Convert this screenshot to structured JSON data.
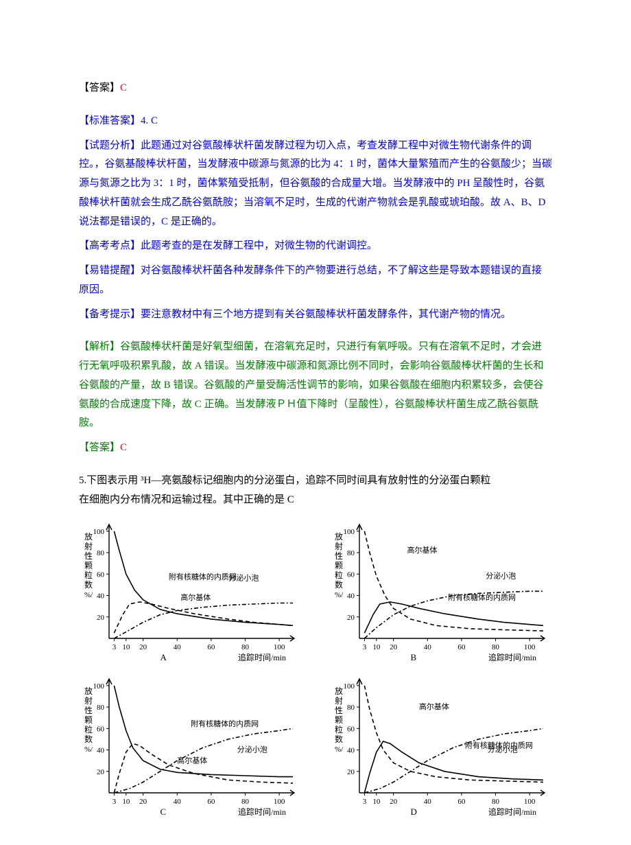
{
  "answer1": {
    "label": "【答案】",
    "value": "C"
  },
  "standard": {
    "label": "【标准答案】",
    "value": "4. C"
  },
  "analysis_q": {
    "label": "【试题分析】",
    "text": "此题通过对谷氨酸棒状杆菌发酵过程为切入点，考查发酵工程中对微生物代谢条件的调控。，谷氨基酸棒状杆菌，当发酵液中碳源与氮源的比为 4：1 时，菌体大量繁殖而产生的谷氨酸少；当碳源与氮源之比为 3：1 时，菌体繁殖受抵制，但谷氨酸的合成量大增。当发酵液中的 PH 呈酸性时，谷氨酸棒状杆菌就会生成乙酰谷氨酰胺；当溶氧不足时，生成的代谢产物就会是乳酸或琥珀酸。故 A、B、D 说法都是错误的，C 是正确的。"
  },
  "gkpoint": {
    "label": "【高考考点】",
    "text": "此题考查的是在发酵工程中，对微生物的代谢调控。"
  },
  "mistake": {
    "label": "【易错提醒】",
    "text": "对谷氨酸棒状杆菌各种发酵条件下的产物要进行总结，不了解这些是导致本题错误的直接原因。"
  },
  "examtip": {
    "label": "【备考提示】",
    "text": "要注意教材中有三个地方提到有关谷氨酸棒状杆菌发酵条件，其代谢产物的情况。"
  },
  "jiexi": {
    "label": "【解析】",
    "text": "谷氨酸棒状杆菌是好氧型细菌，在溶氧充足时，只进行有氧呼吸。只有在溶氧不足时，才会进行无氧呼吸积累乳酸，故 A 错误。当发酵液中碳源和氮源比例不同时，会影响谷氨酸棒状杆菌的生长和谷氨酸的产量，故 B 错误。谷氨酸的产量受酶活性调节的影响，如果谷氨酸在细胞内积累较多，会使谷氨酸的合成速度下降，故 C 正确。当发酵液ＰＨ值下降时（呈酸性），谷氨酸棒状杆菌生成乙酰谷氨酰胺。"
  },
  "answer2": {
    "label": "【答案】",
    "value": "C"
  },
  "q5": {
    "number": "5.",
    "text_line1": "下图表示用 ³H—亮氨酸标记细胞内的分泌蛋白，追踪不同时间具有放射性的分泌蛋白颗粒",
    "text_line2": "在细胞内分布情况和运输过程。其中正确的是    C"
  },
  "chart_common": {
    "y_label": "放射性颗粒数/%",
    "x_label": "追踪时间/min",
    "x_ticks": [
      3,
      10,
      20,
      40,
      60,
      80,
      100
    ],
    "y_ticks": [
      20,
      40,
      60,
      80,
      100
    ],
    "series_labels": {
      "er": "附有核糖体的内质网",
      "golgi": "高尔基体",
      "vesicle": "分泌小泡"
    },
    "axis_color": "#000000",
    "grid_color": "#000000",
    "text_color": "#000000",
    "font_size_axis": 11,
    "font_size_label": 12
  },
  "charts": {
    "A": {
      "label": "A",
      "er": [
        [
          3,
          100
        ],
        [
          6,
          82
        ],
        [
          10,
          60
        ],
        [
          15,
          45
        ],
        [
          20,
          36
        ],
        [
          30,
          27
        ],
        [
          40,
          23
        ],
        [
          60,
          18
        ],
        [
          80,
          15
        ],
        [
          100,
          13
        ],
        [
          108,
          12
        ]
      ],
      "golgi": [
        [
          3,
          5
        ],
        [
          8,
          22
        ],
        [
          12,
          32
        ],
        [
          18,
          34
        ],
        [
          25,
          32
        ],
        [
          35,
          28
        ],
        [
          50,
          23
        ],
        [
          70,
          18
        ],
        [
          85,
          15
        ],
        [
          100,
          13
        ],
        [
          108,
          12
        ]
      ],
      "vesicle": [
        [
          3,
          0
        ],
        [
          10,
          6
        ],
        [
          20,
          15
        ],
        [
          30,
          22
        ],
        [
          40,
          26
        ],
        [
          55,
          29
        ],
        [
          70,
          31
        ],
        [
          85,
          32
        ],
        [
          100,
          33
        ],
        [
          108,
          33
        ]
      ],
      "label_pos": {
        "er": [
          35,
          55
        ],
        "golgi": [
          42,
          36
        ],
        "vesicle": [
          88,
          54
        ]
      }
    },
    "B": {
      "label": "B",
      "golgi": [
        [
          3,
          100
        ],
        [
          6,
          80
        ],
        [
          10,
          58
        ],
        [
          15,
          40
        ],
        [
          20,
          28
        ],
        [
          30,
          18
        ],
        [
          45,
          12
        ],
        [
          65,
          9
        ],
        [
          85,
          8
        ],
        [
          108,
          7
        ]
      ],
      "er": [
        [
          3,
          5
        ],
        [
          8,
          22
        ],
        [
          12,
          32
        ],
        [
          18,
          34
        ],
        [
          25,
          32
        ],
        [
          35,
          28
        ],
        [
          50,
          23
        ],
        [
          70,
          18
        ],
        [
          85,
          15
        ],
        [
          100,
          13
        ],
        [
          108,
          12
        ]
      ],
      "vesicle": [
        [
          3,
          0
        ],
        [
          10,
          10
        ],
        [
          20,
          22
        ],
        [
          30,
          30
        ],
        [
          40,
          35
        ],
        [
          55,
          40
        ],
        [
          70,
          42
        ],
        [
          85,
          43
        ],
        [
          100,
          44
        ],
        [
          108,
          44
        ]
      ],
      "label_pos": {
        "golgi": [
          28,
          80
        ],
        "er": [
          52,
          36
        ],
        "vesicle": [
          92,
          56
        ]
      }
    },
    "C": {
      "label": "C",
      "er": [
        [
          3,
          100
        ],
        [
          6,
          80
        ],
        [
          10,
          58
        ],
        [
          14,
          42
        ],
        [
          20,
          30
        ],
        [
          30,
          22
        ],
        [
          40,
          19
        ],
        [
          60,
          17
        ],
        [
          80,
          16
        ],
        [
          100,
          15
        ],
        [
          108,
          15
        ]
      ],
      "golgi": [
        [
          3,
          0
        ],
        [
          6,
          18
        ],
        [
          10,
          38
        ],
        [
          14,
          46
        ],
        [
          18,
          44
        ],
        [
          25,
          36
        ],
        [
          35,
          26
        ],
        [
          50,
          18
        ],
        [
          70,
          12
        ],
        [
          90,
          10
        ],
        [
          108,
          9
        ]
      ],
      "vesicle": [
        [
          3,
          0
        ],
        [
          12,
          4
        ],
        [
          20,
          10
        ],
        [
          30,
          20
        ],
        [
          40,
          30
        ],
        [
          55,
          42
        ],
        [
          70,
          50
        ],
        [
          85,
          55
        ],
        [
          100,
          58
        ],
        [
          108,
          60
        ]
      ],
      "label_pos": {
        "er": [
          48,
          62
        ],
        "golgi": [
          40,
          28
        ],
        "vesicle": [
          93,
          38
        ]
      }
    },
    "D": {
      "label": "D",
      "golgi": [
        [
          3,
          100
        ],
        [
          6,
          78
        ],
        [
          10,
          56
        ],
        [
          14,
          40
        ],
        [
          20,
          28
        ],
        [
          30,
          20
        ],
        [
          45,
          15
        ],
        [
          65,
          12
        ],
        [
          85,
          11
        ],
        [
          108,
          10
        ]
      ],
      "er": [
        [
          3,
          0
        ],
        [
          6,
          18
        ],
        [
          10,
          38
        ],
        [
          14,
          48
        ],
        [
          18,
          46
        ],
        [
          25,
          38
        ],
        [
          35,
          28
        ],
        [
          50,
          20
        ],
        [
          70,
          15
        ],
        [
          90,
          13
        ],
        [
          108,
          12
        ]
      ],
      "vesicle": [
        [
          3,
          0
        ],
        [
          12,
          4
        ],
        [
          20,
          10
        ],
        [
          30,
          20
        ],
        [
          40,
          30
        ],
        [
          55,
          42
        ],
        [
          70,
          50
        ],
        [
          85,
          55
        ],
        [
          100,
          58
        ],
        [
          108,
          60
        ]
      ],
      "label_pos": {
        "golgi": [
          35,
          78
        ],
        "er": [
          62,
          42
        ],
        "vesicle": [
          93,
          38
        ]
      }
    }
  }
}
